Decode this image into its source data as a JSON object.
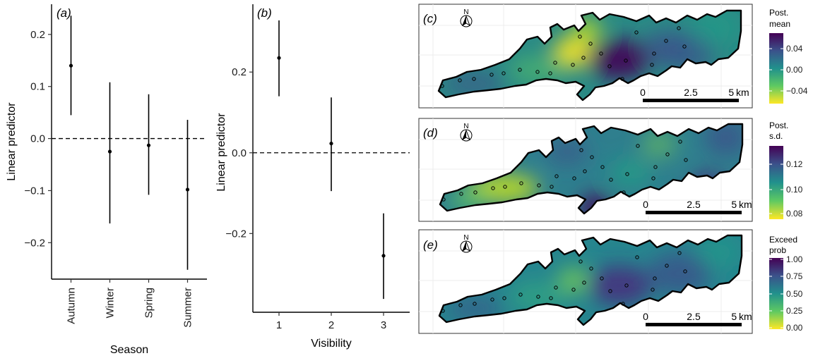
{
  "chart_data": [
    {
      "type": "scatter",
      "panel_tag": "(a)",
      "xlabel": "Season",
      "ylabel": "Linear predictor",
      "categories": [
        "Autumn",
        "Winter",
        "Spring",
        "Summer"
      ],
      "values": [
        0.14,
        -0.025,
        -0.013,
        -0.098
      ],
      "lower": [
        0.045,
        -0.163,
        -0.108,
        -0.252
      ],
      "upper": [
        0.236,
        0.108,
        0.085,
        0.036
      ],
      "yticks": [
        0.2,
        0.1,
        0.0,
        -0.1,
        -0.2
      ],
      "ytick_labels": [
        "0.2",
        "0.1",
        "0.0",
        "−0.1",
        "−0.2"
      ],
      "ylim": [
        -0.27,
        0.258
      ],
      "reference_line": 0.0
    },
    {
      "type": "scatter",
      "panel_tag": "(b)",
      "xlabel": "Visibility",
      "ylabel": "Linear predictor",
      "categories": [
        "1",
        "2",
        "3"
      ],
      "values": [
        0.235,
        0.023,
        -0.255
      ],
      "lower": [
        0.14,
        -0.095,
        -0.362
      ],
      "upper": [
        0.328,
        0.137,
        -0.15
      ],
      "yticks": [
        0.2,
        0.0,
        -0.2
      ],
      "ytick_labels": [
        "0.2",
        "0.0",
        "−0.2"
      ],
      "ylim": [
        -0.395,
        0.368
      ],
      "reference_line": 0.0
    },
    {
      "type": "heatmap",
      "panel_tag": "(c)",
      "legend_title": [
        "Post.",
        "mean"
      ],
      "legend_ticks": [
        "0.04",
        "0.00",
        "−0.04"
      ],
      "scale_labels": [
        "0",
        "2.5",
        "5 km"
      ],
      "north_label": "N"
    },
    {
      "type": "heatmap",
      "panel_tag": "(d)",
      "legend_title": [
        "Post.",
        "s.d."
      ],
      "legend_ticks": [
        "0.12",
        "0.10",
        "0.08"
      ],
      "scale_labels": [
        "0",
        "2.5",
        "5 km"
      ],
      "north_label": "N"
    },
    {
      "type": "heatmap",
      "panel_tag": "(e)",
      "legend_title": [
        "Exceed",
        "prob"
      ],
      "legend_ticks": [
        "1.00",
        "0.75",
        "0.50",
        "0.25",
        "0.00"
      ],
      "scale_labels": [
        "0",
        "2.5",
        "5 km"
      ],
      "north_label": "N"
    }
  ],
  "colors": {
    "viridis": [
      "#fde725",
      "#5ec962",
      "#21918c",
      "#3b528b",
      "#440154"
    ],
    "lake_base": "#2a8a85",
    "grid": "#ececec"
  }
}
